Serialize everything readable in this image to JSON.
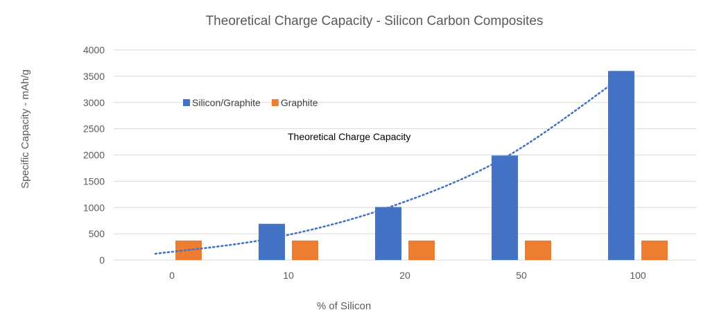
{
  "chart_data": {
    "type": "bar",
    "title": "Theoretical Charge Capacity - Silicon Carbon Composites",
    "xlabel": "% of Silicon",
    "ylabel": "Specific Capacity - mAh/g",
    "categories": [
      "0",
      "10",
      "20",
      "50",
      "100"
    ],
    "ylim": [
      0,
      4000
    ],
    "yticks": [
      0,
      500,
      1000,
      1500,
      2000,
      2500,
      3000,
      3500,
      4000
    ],
    "grid": true,
    "legend_position": "upper-left inside plot",
    "series": [
      {
        "name": "Silicon/Graphite",
        "values": [
          0,
          690,
          1010,
          1990,
          3600
        ],
        "color": "#4472c4"
      },
      {
        "name": "Graphite",
        "values": [
          372,
          372,
          372,
          372,
          372
        ],
        "color": "#ed7d31"
      }
    ],
    "trendline": {
      "type": "exponential",
      "series": "Silicon/Graphite",
      "style": "dotted",
      "color": "#4472c4",
      "values": [
        120,
        415,
        1000,
        1950,
        3480
      ]
    },
    "annotations": [
      {
        "text": "Theoretical Charge Capacity"
      }
    ]
  }
}
